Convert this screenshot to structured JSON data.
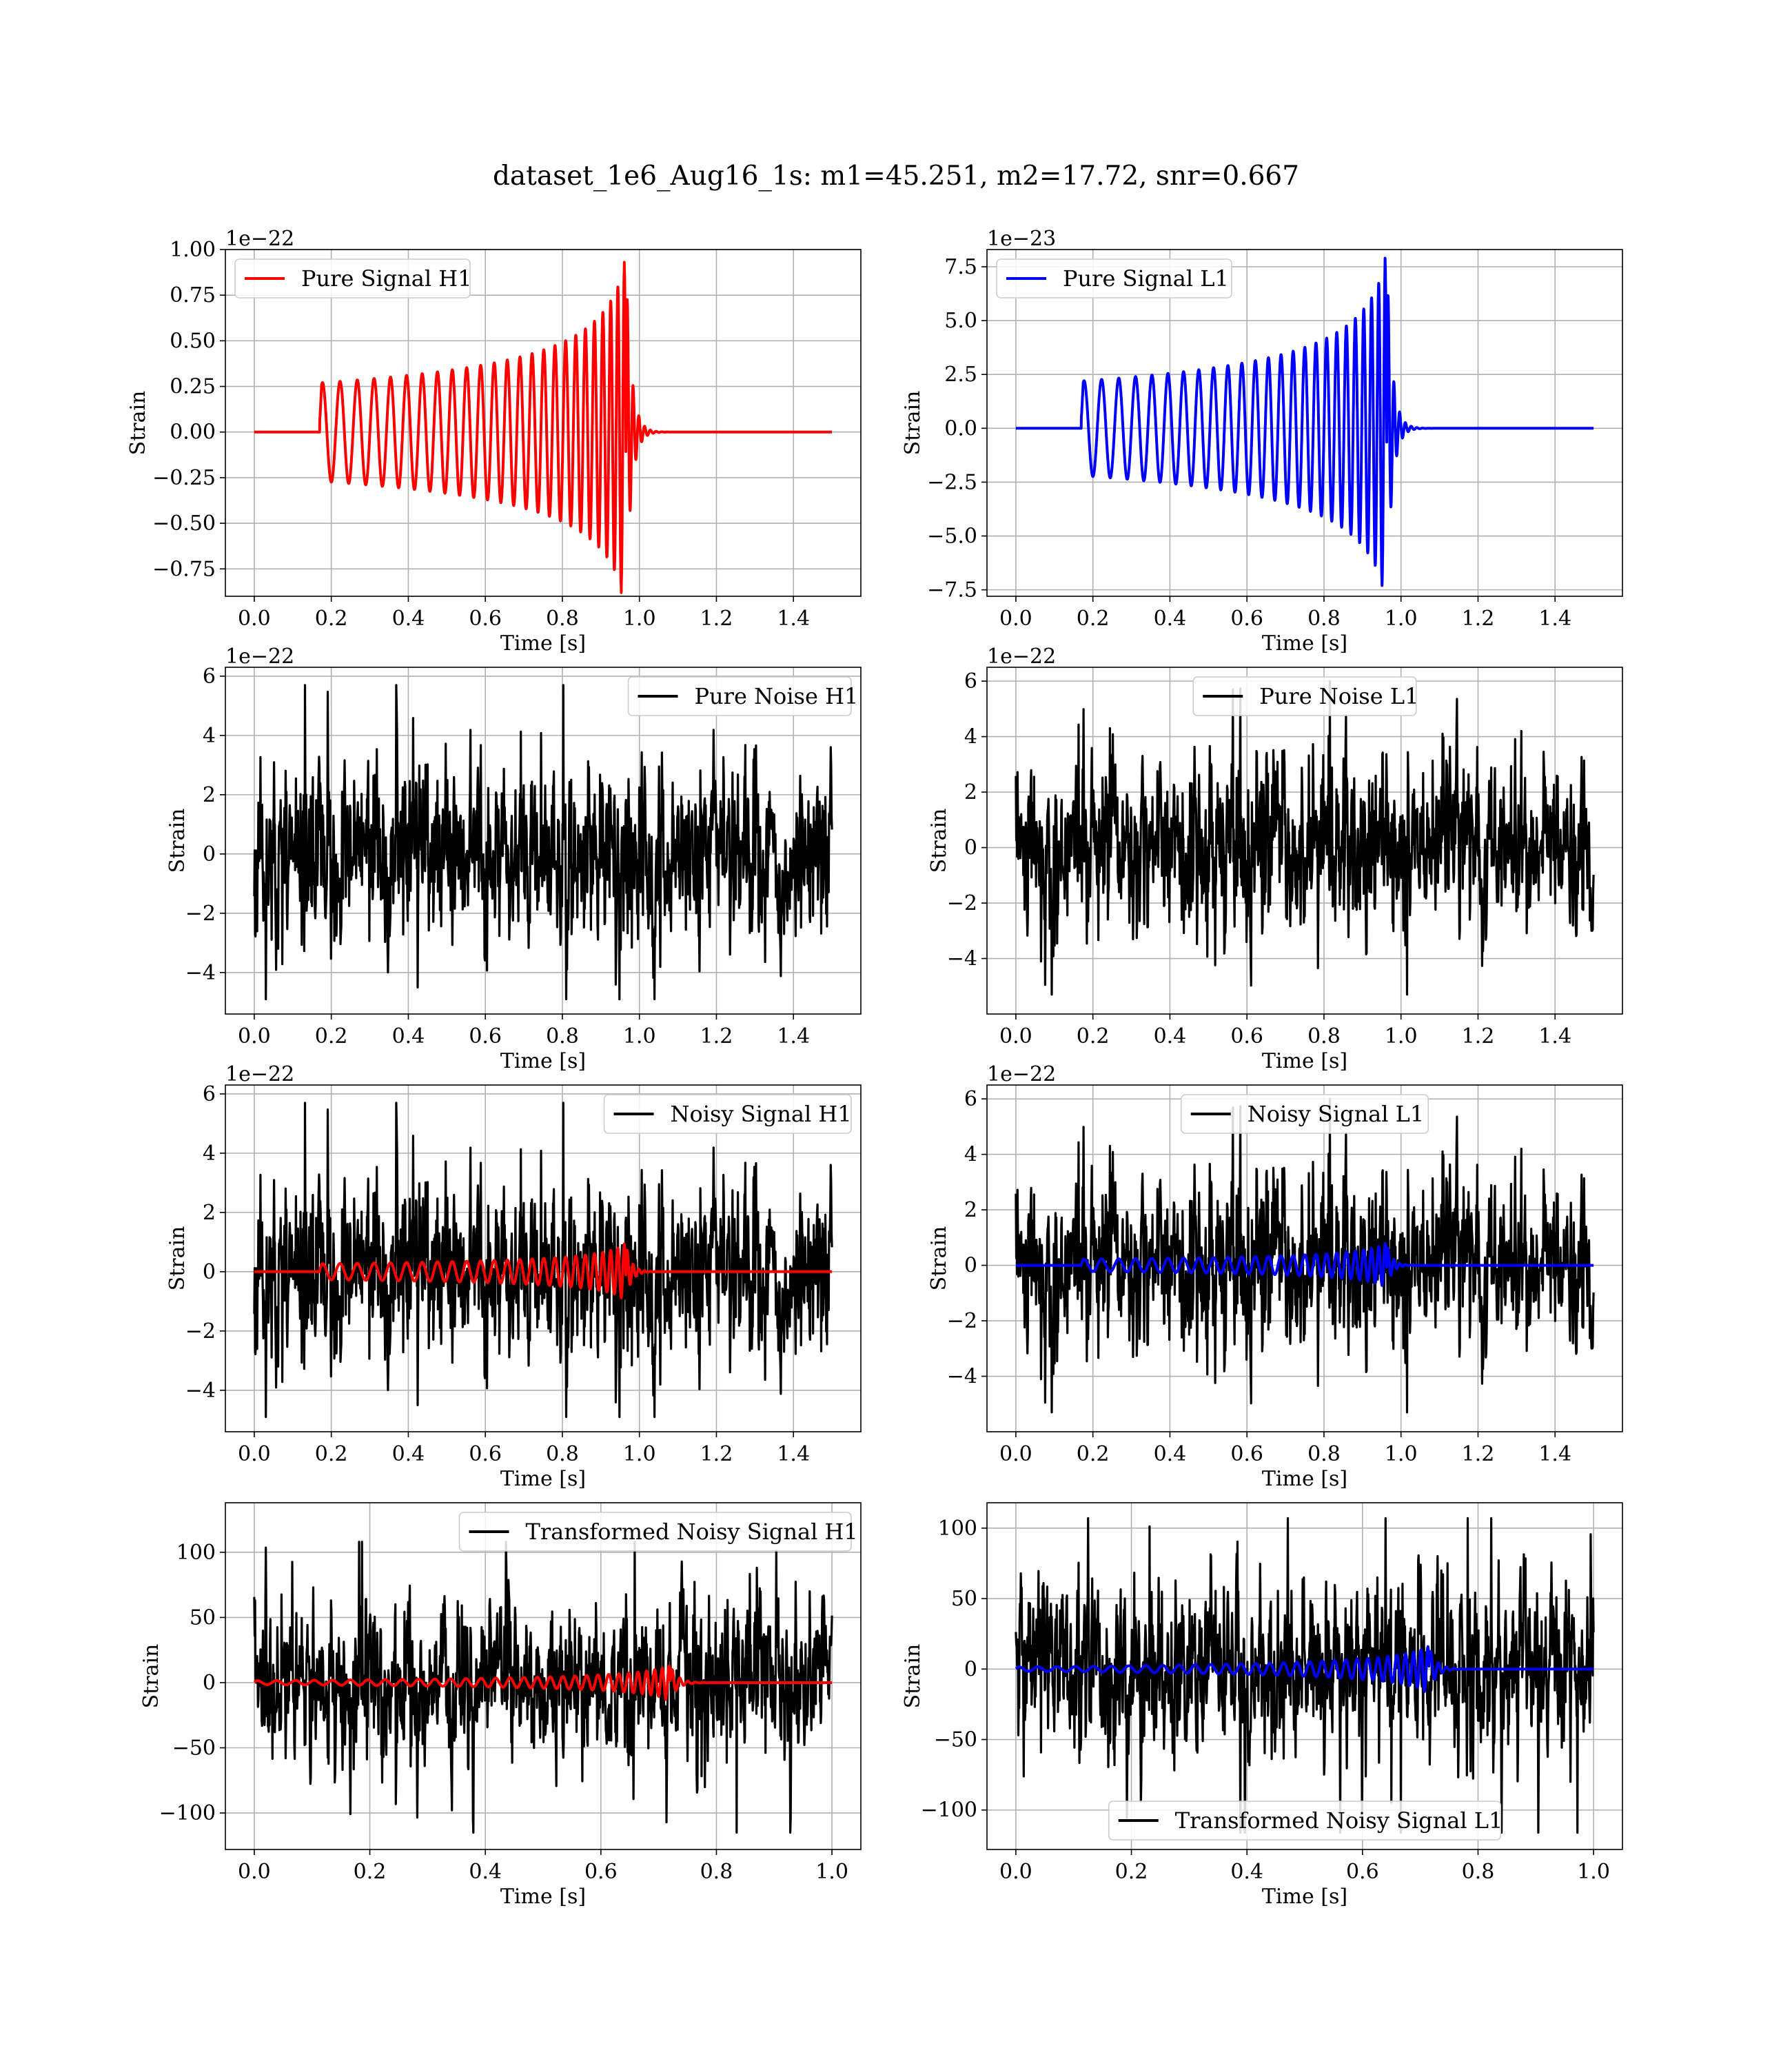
{
  "suptitle": "dataset_1e6_Aug16_1s: m1=45.251, m2=17.72, snr=0.667",
  "colors": {
    "h1": "#ff0000",
    "l1": "#0000ff",
    "noise": "#000000"
  },
  "chart_data": [
    {
      "type": "line",
      "legend": "Pure Signal H1",
      "legend_loc": "upper-left",
      "xlabel": "Time [s]",
      "ylabel": "Strain",
      "offset_text": "1e−22",
      "xlim": [
        -0.075,
        1.575
      ],
      "ylim": [
        -0.9,
        1.0
      ],
      "xticks": [
        0.0,
        0.2,
        0.4,
        0.6,
        0.8,
        1.0,
        1.2,
        1.4
      ],
      "xtick_labels": [
        "0.0",
        "0.2",
        "0.4",
        "0.6",
        "0.8",
        "1.0",
        "1.2",
        "1.4"
      ],
      "yticks": [
        1.0,
        0.75,
        0.5,
        0.25,
        0.0,
        -0.25,
        -0.5,
        -0.75
      ],
      "ytick_labels": [
        "1.00",
        "0.75",
        "0.50",
        "0.25",
        "0.00",
        "−0.25",
        "−0.50",
        "−0.75"
      ],
      "grid": true,
      "series": [
        {
          "kind": "chirp",
          "color": "#ff0000",
          "x_range": [
            0.0,
            1.5
          ],
          "t_start": 0.17,
          "t_merge": 0.965,
          "amp_start": 0.27,
          "amp_peak": 0.93,
          "peak_neg": -0.88,
          "cycles": 29
        }
      ]
    },
    {
      "type": "line",
      "legend": "Pure Signal L1",
      "legend_loc": "upper-left",
      "xlabel": "Time [s]",
      "ylabel": "Strain",
      "offset_text": "1e−23",
      "xlim": [
        -0.075,
        1.575
      ],
      "ylim": [
        -7.8,
        8.3
      ],
      "xticks": [
        0.0,
        0.2,
        0.4,
        0.6,
        0.8,
        1.0,
        1.2,
        1.4
      ],
      "xtick_labels": [
        "0.0",
        "0.2",
        "0.4",
        "0.6",
        "0.8",
        "1.0",
        "1.2",
        "1.4"
      ],
      "yticks": [
        7.5,
        5.0,
        2.5,
        0.0,
        -2.5,
        -5.0,
        -7.5
      ],
      "ytick_labels": [
        "7.5",
        "5.0",
        "2.5",
        "0.0",
        "−2.5",
        "−5.0",
        "−7.5"
      ],
      "grid": true,
      "series": [
        {
          "kind": "chirp",
          "color": "#0000ff",
          "x_range": [
            0.0,
            1.5
          ],
          "t_start": 0.17,
          "t_merge": 0.963,
          "amp_start": 2.2,
          "amp_peak": 7.9,
          "peak_neg": -7.3,
          "cycles": 29
        }
      ]
    },
    {
      "type": "line",
      "legend": "Pure Noise H1",
      "legend_loc": "upper-right",
      "xlabel": "Time [s]",
      "ylabel": "Strain",
      "offset_text": "1e−22",
      "xlim": [
        -0.075,
        1.575
      ],
      "ylim": [
        -5.4,
        6.3
      ],
      "xticks": [
        0.0,
        0.2,
        0.4,
        0.6,
        0.8,
        1.0,
        1.2,
        1.4
      ],
      "xtick_labels": [
        "0.0",
        "0.2",
        "0.4",
        "0.6",
        "0.8",
        "1.0",
        "1.2",
        "1.4"
      ],
      "yticks": [
        6,
        4,
        2,
        0,
        -2,
        -4
      ],
      "ytick_labels": [
        "6",
        "4",
        "2",
        "0",
        "−2",
        "−4"
      ],
      "grid": true,
      "series": [
        {
          "kind": "noise",
          "color": "#000000",
          "x_range": [
            0.0,
            1.5
          ],
          "seed": 11,
          "sigma": 1.25,
          "max": 5.7,
          "min": -4.9
        }
      ]
    },
    {
      "type": "line",
      "legend": "Pure Noise L1",
      "legend_loc": "upper-center",
      "xlabel": "Time [s]",
      "ylabel": "Strain",
      "offset_text": "1e−22",
      "xlim": [
        -0.075,
        1.575
      ],
      "ylim": [
        -6.0,
        6.5
      ],
      "xticks": [
        0.0,
        0.2,
        0.4,
        0.6,
        0.8,
        1.0,
        1.2,
        1.4
      ],
      "xtick_labels": [
        "0.0",
        "0.2",
        "0.4",
        "0.6",
        "0.8",
        "1.0",
        "1.2",
        "1.4"
      ],
      "yticks": [
        6,
        4,
        2,
        0,
        -2,
        -4
      ],
      "ytick_labels": [
        "6",
        "4",
        "2",
        "0",
        "−2",
        "−4"
      ],
      "grid": true,
      "series": [
        {
          "kind": "noise",
          "color": "#000000",
          "x_range": [
            0.0,
            1.5
          ],
          "seed": 23,
          "sigma": 1.3,
          "max": 6.0,
          "min": -5.3
        }
      ]
    },
    {
      "type": "line",
      "legend": "Noisy Signal H1",
      "legend_loc": "upper-right",
      "xlabel": "Time [s]",
      "ylabel": "Strain",
      "offset_text": "1e−22",
      "xlim": [
        -0.075,
        1.575
      ],
      "ylim": [
        -5.4,
        6.3
      ],
      "xticks": [
        0.0,
        0.2,
        0.4,
        0.6,
        0.8,
        1.0,
        1.2,
        1.4
      ],
      "xtick_labels": [
        "0.0",
        "0.2",
        "0.4",
        "0.6",
        "0.8",
        "1.0",
        "1.2",
        "1.4"
      ],
      "yticks": [
        6,
        4,
        2,
        0,
        -2,
        -4
      ],
      "ytick_labels": [
        "6",
        "4",
        "2",
        "0",
        "−2",
        "−4"
      ],
      "grid": true,
      "series": [
        {
          "kind": "noise",
          "color": "#000000",
          "x_range": [
            0.0,
            1.5
          ],
          "seed": 11,
          "sigma": 1.25,
          "max": 5.7,
          "min": -4.9
        },
        {
          "kind": "chirp",
          "color": "#ff0000",
          "x_range": [
            0.0,
            1.5
          ],
          "t_start": 0.17,
          "t_merge": 0.965,
          "amp_start": 0.27,
          "amp_peak": 0.93,
          "peak_neg": -0.88,
          "cycles": 29
        }
      ]
    },
    {
      "type": "line",
      "legend": "Noisy Signal L1",
      "legend_loc": "upper-center",
      "xlabel": "Time [s]",
      "ylabel": "Strain",
      "offset_text": "1e−22",
      "xlim": [
        -0.075,
        1.575
      ],
      "ylim": [
        -6.0,
        6.5
      ],
      "xticks": [
        0.0,
        0.2,
        0.4,
        0.6,
        0.8,
        1.0,
        1.2,
        1.4
      ],
      "xtick_labels": [
        "0.0",
        "0.2",
        "0.4",
        "0.6",
        "0.8",
        "1.0",
        "1.2",
        "1.4"
      ],
      "yticks": [
        6,
        4,
        2,
        0,
        -2,
        -4
      ],
      "ytick_labels": [
        "6",
        "4",
        "2",
        "0",
        "−2",
        "−4"
      ],
      "grid": true,
      "series": [
        {
          "kind": "noise",
          "color": "#000000",
          "x_range": [
            0.0,
            1.5
          ],
          "seed": 23,
          "sigma": 1.3,
          "max": 6.0,
          "min": -5.3
        },
        {
          "kind": "chirp",
          "color": "#0000ff",
          "x_range": [
            0.0,
            1.5
          ],
          "t_start": 0.17,
          "t_merge": 0.963,
          "amp_start": 0.22,
          "amp_peak": 0.79,
          "peak_neg": -0.73,
          "cycles": 29
        }
      ]
    },
    {
      "type": "line",
      "legend": "Transformed Noisy Signal H1",
      "legend_loc": "upper-right",
      "xlabel": "Time [s]",
      "ylabel": "Strain",
      "offset_text": "",
      "xlim": [
        -0.05,
        1.05
      ],
      "ylim": [
        -128,
        138
      ],
      "xticks": [
        0.0,
        0.2,
        0.4,
        0.6,
        0.8,
        1.0
      ],
      "xtick_labels": [
        "0.0",
        "0.2",
        "0.4",
        "0.6",
        "0.8",
        "1.0"
      ],
      "yticks": [
        100,
        50,
        0,
        -50,
        -100
      ],
      "ytick_labels": [
        "100",
        "50",
        "0",
        "−50",
        "−100"
      ],
      "grid": true,
      "series": [
        {
          "kind": "noise",
          "color": "#000000",
          "x_range": [
            0.0,
            1.0
          ],
          "seed": 37,
          "sigma": 26,
          "max": 108,
          "min": -115
        },
        {
          "kind": "chirp",
          "color": "#ff0000",
          "x_range": [
            0.0,
            1.0
          ],
          "t_start": 0.0,
          "t_merge": 0.72,
          "amp_start": 1.5,
          "amp_peak": 13,
          "peak_neg": -13,
          "cycles": 36
        }
      ]
    },
    {
      "type": "line",
      "legend": "Transformed Noisy Signal L1",
      "legend_loc": "lower-center",
      "xlabel": "Time [s]",
      "ylabel": "Strain",
      "offset_text": "",
      "xlim": [
        -0.05,
        1.05
      ],
      "ylim": [
        -128,
        118
      ],
      "xticks": [
        0.0,
        0.2,
        0.4,
        0.6,
        0.8,
        1.0
      ],
      "xtick_labels": [
        "0.0",
        "0.2",
        "0.4",
        "0.6",
        "0.8",
        "1.0"
      ],
      "yticks": [
        100,
        50,
        0,
        -50,
        -100
      ],
      "ytick_labels": [
        "100",
        "50",
        "0",
        "−50",
        "−100"
      ],
      "grid": true,
      "series": [
        {
          "kind": "noise",
          "color": "#000000",
          "x_range": [
            0.0,
            1.0
          ],
          "seed": 53,
          "sigma": 26,
          "max": 107,
          "min": -116
        },
        {
          "kind": "chirp",
          "color": "#0000ff",
          "x_range": [
            0.0,
            1.0
          ],
          "t_start": 0.0,
          "t_merge": 0.715,
          "amp_start": 1.5,
          "amp_peak": 16,
          "peak_neg": -16,
          "cycles": 36
        }
      ]
    }
  ]
}
